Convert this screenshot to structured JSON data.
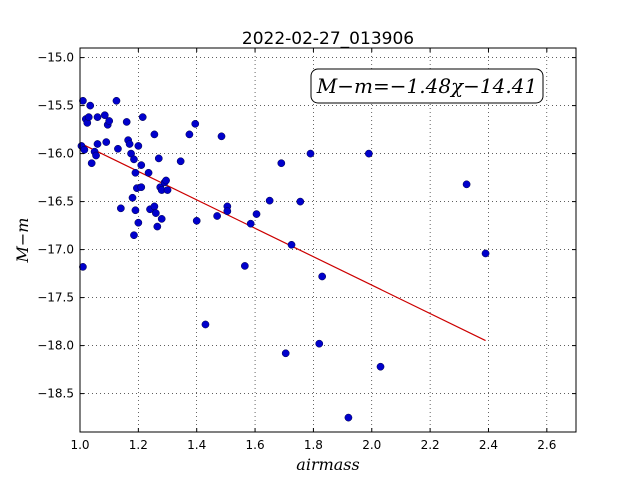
{
  "chart_data": {
    "type": "scatter",
    "title": "2022-02-27_013906",
    "xlabel": "airmass",
    "ylabel": "M−m",
    "annotation": "M−m=−1.48χ−14.41",
    "xlim": [
      1.0,
      2.7
    ],
    "ylim": [
      -18.9,
      -14.9
    ],
    "y_inverted": true,
    "grid": true,
    "xticks": [
      "1.0",
      "1.2",
      "1.4",
      "1.6",
      "1.8",
      "2.0",
      "2.2",
      "2.4",
      "2.6"
    ],
    "yticks": [
      "−15.0",
      "−15.5",
      "−16.0",
      "−16.5",
      "−17.0",
      "−17.5",
      "−18.0",
      "−18.5"
    ],
    "xtick_values": [
      1.0,
      1.2,
      1.4,
      1.6,
      1.8,
      2.0,
      2.2,
      2.4,
      2.6
    ],
    "ytick_values": [
      -15.0,
      -15.5,
      -16.0,
      -16.5,
      -17.0,
      -17.5,
      -18.0,
      -18.5
    ],
    "fit": {
      "slope": -1.48,
      "intercept": -14.41,
      "x_range": [
        1.0,
        2.39
      ],
      "color": "#cc0000"
    },
    "point_color": "#0000cc",
    "points": [
      {
        "x": 1.005,
        "y": -15.92
      },
      {
        "x": 1.01,
        "y": -15.45
      },
      {
        "x": 1.01,
        "y": -17.18
      },
      {
        "x": 1.015,
        "y": -15.96
      },
      {
        "x": 1.02,
        "y": -15.64
      },
      {
        "x": 1.025,
        "y": -15.68
      },
      {
        "x": 1.03,
        "y": -15.62
      },
      {
        "x": 1.035,
        "y": -15.5
      },
      {
        "x": 1.04,
        "y": -16.1
      },
      {
        "x": 1.05,
        "y": -15.98
      },
      {
        "x": 1.055,
        "y": -16.02
      },
      {
        "x": 1.06,
        "y": -15.62
      },
      {
        "x": 1.06,
        "y": -15.9
      },
      {
        "x": 1.085,
        "y": -15.6
      },
      {
        "x": 1.09,
        "y": -15.88
      },
      {
        "x": 1.095,
        "y": -15.7
      },
      {
        "x": 1.1,
        "y": -15.66
      },
      {
        "x": 1.125,
        "y": -15.45
      },
      {
        "x": 1.13,
        "y": -15.95
      },
      {
        "x": 1.14,
        "y": -16.57
      },
      {
        "x": 1.16,
        "y": -15.67
      },
      {
        "x": 1.165,
        "y": -15.86
      },
      {
        "x": 1.17,
        "y": -15.9
      },
      {
        "x": 1.175,
        "y": -16.0
      },
      {
        "x": 1.18,
        "y": -16.46
      },
      {
        "x": 1.185,
        "y": -16.06
      },
      {
        "x": 1.185,
        "y": -16.85
      },
      {
        "x": 1.19,
        "y": -16.2
      },
      {
        "x": 1.19,
        "y": -16.59
      },
      {
        "x": 1.195,
        "y": -16.36
      },
      {
        "x": 1.2,
        "y": -15.92
      },
      {
        "x": 1.2,
        "y": -16.72
      },
      {
        "x": 1.21,
        "y": -16.12
      },
      {
        "x": 1.21,
        "y": -16.35
      },
      {
        "x": 1.215,
        "y": -15.62
      },
      {
        "x": 1.235,
        "y": -16.2
      },
      {
        "x": 1.24,
        "y": -16.58
      },
      {
        "x": 1.255,
        "y": -15.8
      },
      {
        "x": 1.255,
        "y": -16.55
      },
      {
        "x": 1.26,
        "y": -16.62
      },
      {
        "x": 1.265,
        "y": -16.76
      },
      {
        "x": 1.27,
        "y": -16.05
      },
      {
        "x": 1.275,
        "y": -16.35
      },
      {
        "x": 1.28,
        "y": -16.38
      },
      {
        "x": 1.28,
        "y": -16.68
      },
      {
        "x": 1.29,
        "y": -16.3
      },
      {
        "x": 1.295,
        "y": -16.28
      },
      {
        "x": 1.3,
        "y": -16.38
      },
      {
        "x": 1.345,
        "y": -16.08
      },
      {
        "x": 1.375,
        "y": -15.8
      },
      {
        "x": 1.395,
        "y": -15.69
      },
      {
        "x": 1.4,
        "y": -16.7
      },
      {
        "x": 1.43,
        "y": -17.78
      },
      {
        "x": 1.47,
        "y": -16.65
      },
      {
        "x": 1.485,
        "y": -15.82
      },
      {
        "x": 1.505,
        "y": -16.55
      },
      {
        "x": 1.505,
        "y": -16.6
      },
      {
        "x": 1.565,
        "y": -17.17
      },
      {
        "x": 1.585,
        "y": -16.73
      },
      {
        "x": 1.605,
        "y": -16.63
      },
      {
        "x": 1.65,
        "y": -16.49
      },
      {
        "x": 1.69,
        "y": -16.1
      },
      {
        "x": 1.705,
        "y": -18.08
      },
      {
        "x": 1.725,
        "y": -16.95
      },
      {
        "x": 1.755,
        "y": -16.5
      },
      {
        "x": 1.79,
        "y": -16.0
      },
      {
        "x": 1.82,
        "y": -17.98
      },
      {
        "x": 1.83,
        "y": -17.28
      },
      {
        "x": 1.92,
        "y": -18.75
      },
      {
        "x": 1.99,
        "y": -16.0
      },
      {
        "x": 2.03,
        "y": -18.22
      },
      {
        "x": 2.325,
        "y": -16.32
      },
      {
        "x": 2.39,
        "y": -17.04
      }
    ]
  }
}
